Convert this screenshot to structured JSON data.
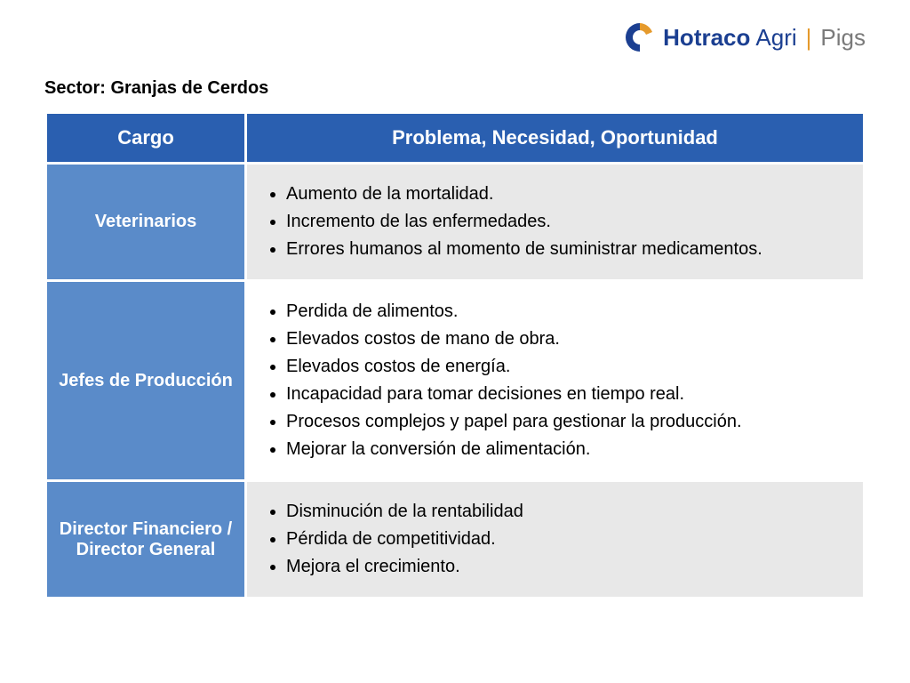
{
  "brand": {
    "logo_name": "hotraco-logo",
    "word1": "Hotraco",
    "word2": "Agri",
    "divider": "|",
    "word3": "Pigs",
    "color_word1": "#1b3f91",
    "color_word2": "#1b3f91",
    "color_divider": "#e59a2c",
    "color_word3": "#7a7a7a",
    "mark_blue": "#1b3f91",
    "mark_orange": "#e59a2c"
  },
  "sector_label": "Sector: Granjas de Cerdos",
  "table": {
    "header_bg": "#2a5fb0",
    "role_bg": "#5a8bc9",
    "alt_bg_a": "#e8e8e8",
    "alt_bg_b": "#ffffff",
    "border_color": "#ffffff",
    "columns": {
      "role": "Cargo",
      "problem": "Problema, Necesidad, Oportunidad"
    },
    "rows": [
      {
        "role": "Veterinarios",
        "bg": "#e8e8e8",
        "items": [
          "Aumento de la mortalidad.",
          "Incremento de las enfermedades.",
          "Errores humanos al momento de suministrar medicamentos."
        ]
      },
      {
        "role": "Jefes de Producción",
        "bg": "#ffffff",
        "items": [
          "Perdida de alimentos.",
          "Elevados costos de mano de obra.",
          "Elevados costos de energía.",
          "Incapacidad para tomar decisiones en tiempo real.",
          "Procesos complejos y papel para gestionar la producción.",
          "Mejorar la conversión de alimentación."
        ]
      },
      {
        "role": "Director Financiero / Director General",
        "bg": "#e8e8e8",
        "items": [
          "Disminución de la rentabilidad",
          "Pérdida de competitividad.",
          "Mejora el crecimiento."
        ]
      }
    ]
  }
}
